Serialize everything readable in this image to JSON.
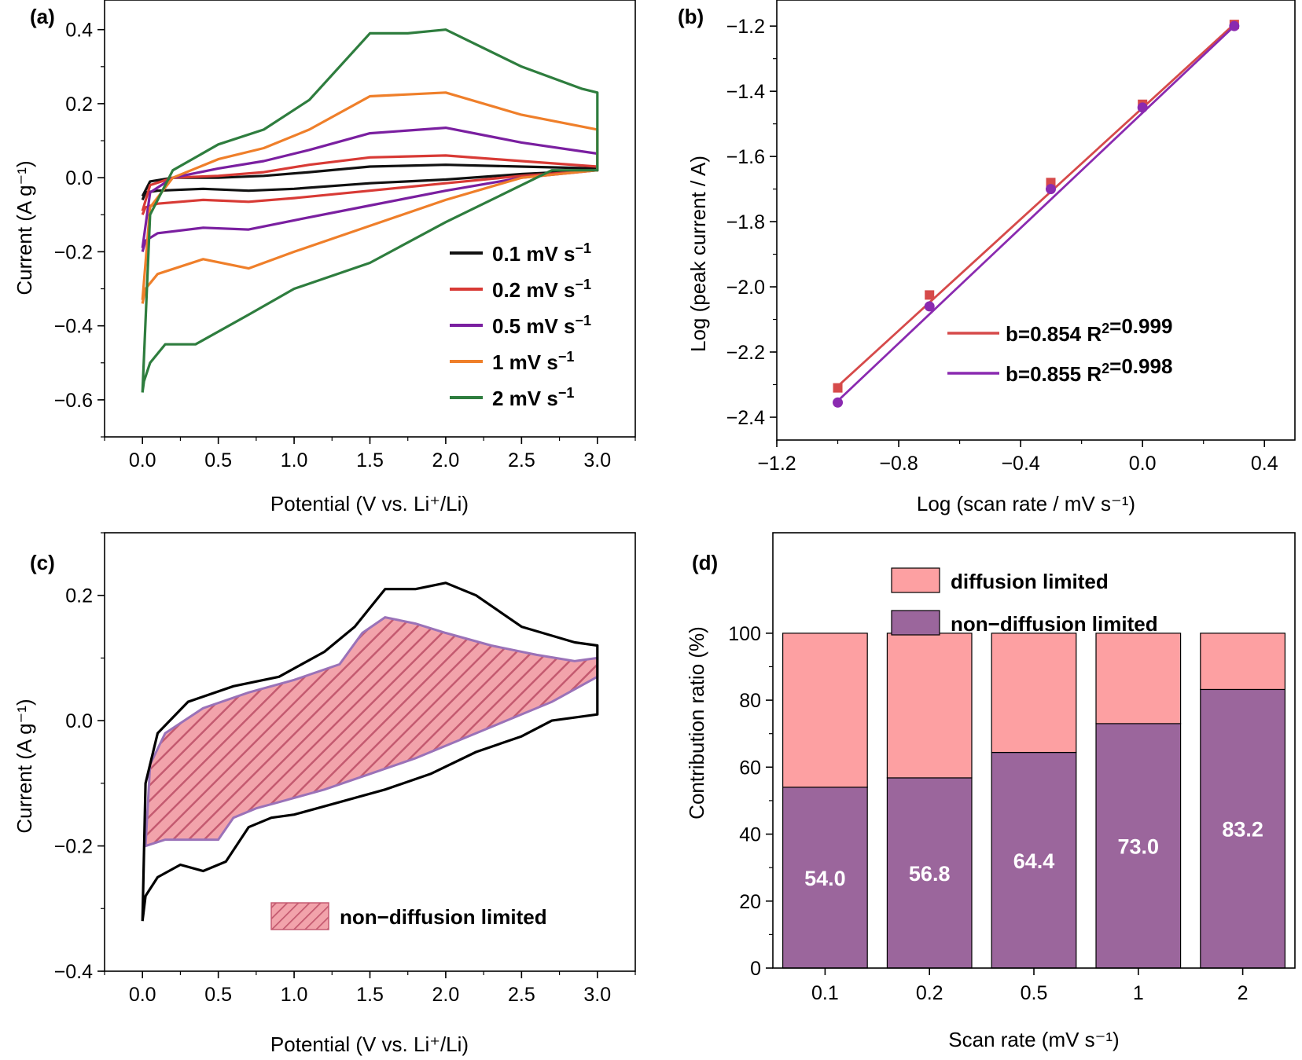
{
  "chart_data": [
    {
      "panel": "(a)",
      "type": "line",
      "xlabel": "Potential (V vs. Li⁺/Li)",
      "ylabel": "Current (A g⁻¹)",
      "xlim": [
        -0.25,
        3.25
      ],
      "ylim": [
        -0.7,
        0.48
      ],
      "xticks": [
        0.0,
        0.5,
        1.0,
        1.5,
        2.0,
        2.5,
        3.0
      ],
      "xtick_labels": [
        "0.0",
        "0.5",
        "1.0",
        "1.5",
        "2.0",
        "2.5",
        "3.0"
      ],
      "yticks": [
        -0.6,
        -0.4,
        -0.2,
        0.0,
        0.2,
        0.4
      ],
      "ytick_labels": [
        "−0.6",
        "−0.4",
        "−0.2",
        "0.0",
        "0.2",
        "0.4"
      ],
      "legend_position": "bottom-right",
      "series": [
        {
          "name": "0.1 mV s⁻¹",
          "color": "#111111",
          "x": [
            0.0,
            0.05,
            0.2,
            0.5,
            0.8,
            1.1,
            1.5,
            2.0,
            2.5,
            3.0,
            3.0,
            2.5,
            2.0,
            1.5,
            1.0,
            0.7,
            0.4,
            0.1,
            0.02,
            0.0
          ],
          "y": [
            -0.05,
            -0.01,
            0.0,
            0.0,
            0.005,
            0.015,
            0.03,
            0.035,
            0.03,
            0.025,
            0.02,
            0.01,
            -0.005,
            -0.015,
            -0.03,
            -0.035,
            -0.03,
            -0.035,
            -0.04,
            -0.06
          ]
        },
        {
          "name": "0.2 mV s⁻¹",
          "color": "#d83a35",
          "x": [
            0.0,
            0.05,
            0.2,
            0.5,
            0.8,
            1.1,
            1.5,
            2.0,
            2.5,
            3.0,
            3.0,
            2.5,
            2.0,
            1.5,
            1.0,
            0.7,
            0.4,
            0.1,
            0.02,
            0.0
          ],
          "y": [
            -0.09,
            -0.02,
            0.0,
            0.005,
            0.015,
            0.035,
            0.055,
            0.06,
            0.045,
            0.03,
            0.02,
            0.005,
            -0.015,
            -0.035,
            -0.055,
            -0.065,
            -0.06,
            -0.07,
            -0.08,
            -0.1
          ]
        },
        {
          "name": "0.5 mV s⁻¹",
          "color": "#7a1fa0",
          "x": [
            0.0,
            0.05,
            0.2,
            0.5,
            0.8,
            1.1,
            1.5,
            2.0,
            2.5,
            3.0,
            3.0,
            2.5,
            2.0,
            1.5,
            1.0,
            0.7,
            0.4,
            0.1,
            0.02,
            0.0
          ],
          "y": [
            -0.19,
            -0.04,
            0.0,
            0.025,
            0.045,
            0.075,
            0.12,
            0.135,
            0.095,
            0.065,
            0.02,
            0.0,
            -0.035,
            -0.075,
            -0.115,
            -0.14,
            -0.135,
            -0.15,
            -0.17,
            -0.2
          ]
        },
        {
          "name": "1 mV s⁻¹",
          "color": "#ef7f2a",
          "x": [
            0.0,
            0.05,
            0.2,
            0.5,
            0.8,
            1.1,
            1.5,
            2.0,
            2.5,
            3.0,
            3.0,
            2.5,
            2.0,
            1.5,
            1.0,
            0.7,
            0.4,
            0.1,
            0.02,
            0.0
          ],
          "y": [
            -0.33,
            -0.08,
            0.0,
            0.05,
            0.08,
            0.13,
            0.22,
            0.23,
            0.17,
            0.13,
            0.02,
            0.0,
            -0.06,
            -0.13,
            -0.2,
            -0.245,
            -0.22,
            -0.26,
            -0.3,
            -0.34
          ]
        },
        {
          "name": "2 mV s⁻¹",
          "color": "#2e7d3e",
          "x": [
            0.0,
            0.05,
            0.2,
            0.5,
            0.8,
            1.1,
            1.5,
            1.75,
            2.0,
            2.5,
            2.9,
            3.0,
            3.0,
            2.7,
            2.5,
            2.0,
            1.5,
            1.0,
            0.7,
            0.35,
            0.15,
            0.05,
            0.01,
            0.0
          ],
          "y": [
            -0.58,
            -0.1,
            0.02,
            0.09,
            0.13,
            0.21,
            0.39,
            0.39,
            0.4,
            0.3,
            0.24,
            0.23,
            0.02,
            0.02,
            -0.02,
            -0.12,
            -0.23,
            -0.3,
            -0.37,
            -0.45,
            -0.45,
            -0.5,
            -0.55,
            -0.58
          ]
        }
      ]
    },
    {
      "panel": "(b)",
      "type": "scatter",
      "xlabel": "Log (scan rate / mV s⁻¹)",
      "ylabel": "Log (peak current / A)",
      "xlim": [
        -1.2,
        0.5
      ],
      "ylim": [
        -2.47,
        -1.12
      ],
      "xticks": [
        -1.2,
        -0.8,
        -0.4,
        0.0,
        0.4
      ],
      "xtick_labels": [
        "−1.2",
        "−0.8",
        "−0.4",
        "0.0",
        "0.4"
      ],
      "yticks": [
        -2.4,
        -2.2,
        -2.0,
        -1.8,
        -1.6,
        -1.4,
        -1.2
      ],
      "ytick_labels": [
        "−2.4",
        "−2.2",
        "−2.0",
        "−1.8",
        "−1.6",
        "−1.4",
        "−1.2"
      ],
      "legend_position": "bottom-right",
      "series": [
        {
          "name": "b=0.854 R²=0.999",
          "color": "#d64a4a",
          "marker": "square",
          "x": [
            -1.0,
            -0.699,
            -0.301,
            0.0,
            0.301
          ],
          "y": [
            -2.31,
            -2.025,
            -1.68,
            -1.44,
            -1.195
          ],
          "fit": {
            "slope": 0.854,
            "x": [
              -1.0,
              0.301
            ],
            "y": [
              -2.305,
              -1.194
            ]
          }
        },
        {
          "name": "b=0.855 R²=0.998",
          "color": "#8a2ab0",
          "marker": "circle",
          "x": [
            -1.0,
            -0.699,
            -0.301,
            0.0,
            0.301
          ],
          "y": [
            -2.355,
            -2.06,
            -1.7,
            -1.45,
            -1.2
          ],
          "fit": {
            "slope": 0.855,
            "x": [
              -1.0,
              0.301
            ],
            "y": [
              -2.35,
              -1.2
            ]
          }
        }
      ]
    },
    {
      "panel": "(c)",
      "type": "area",
      "xlabel": "Potential (V vs. Li⁺/Li)",
      "ylabel": "Current (A g⁻¹)",
      "xlim": [
        -0.25,
        3.25
      ],
      "ylim": [
        -0.4,
        0.3
      ],
      "xticks": [
        0.0,
        0.5,
        1.0,
        1.5,
        2.0,
        2.5,
        3.0
      ],
      "xtick_labels": [
        "0.0",
        "0.5",
        "1.0",
        "1.5",
        "2.0",
        "2.5",
        "3.0"
      ],
      "yticks": [
        -0.4,
        -0.2,
        0.0,
        0.2
      ],
      "ytick_labels": [
        "−0.4",
        "−0.2",
        "0.0",
        "0.2"
      ],
      "legend_position": "bottom-right",
      "legend": "non−diffusion limited",
      "fill_color": "#f0a0a8",
      "hatch_color": "#c45a70",
      "outline_color": "#9a72b8",
      "total_curve": {
        "color": "#000000",
        "x": [
          0.0,
          0.02,
          0.1,
          0.3,
          0.6,
          0.9,
          1.2,
          1.4,
          1.6,
          1.8,
          2.0,
          2.2,
          2.5,
          2.85,
          3.0,
          3.0,
          2.7,
          2.5,
          2.2,
          1.9,
          1.6,
          1.3,
          1.0,
          0.85,
          0.7,
          0.55,
          0.4,
          0.25,
          0.1,
          0.02,
          0.0
        ],
        "y": [
          -0.32,
          -0.1,
          -0.02,
          0.03,
          0.055,
          0.07,
          0.11,
          0.15,
          0.21,
          0.21,
          0.22,
          0.2,
          0.15,
          0.125,
          0.12,
          0.01,
          0.0,
          -0.025,
          -0.05,
          -0.085,
          -0.11,
          -0.13,
          -0.15,
          -0.155,
          -0.17,
          -0.225,
          -0.24,
          -0.23,
          -0.25,
          -0.28,
          -0.32
        ]
      },
      "region": {
        "x": [
          0.02,
          0.05,
          0.15,
          0.4,
          0.7,
          1.0,
          1.3,
          1.45,
          1.6,
          1.8,
          2.0,
          2.3,
          2.6,
          2.85,
          3.0,
          3.0,
          2.7,
          2.4,
          2.1,
          1.8,
          1.5,
          1.2,
          0.9,
          0.75,
          0.6,
          0.5,
          0.35,
          0.15,
          0.02
        ],
        "y": [
          -0.2,
          -0.07,
          -0.02,
          0.02,
          0.045,
          0.065,
          0.09,
          0.14,
          0.165,
          0.155,
          0.14,
          0.12,
          0.105,
          0.095,
          0.1,
          0.07,
          0.03,
          0.0,
          -0.03,
          -0.06,
          -0.085,
          -0.11,
          -0.13,
          -0.14,
          -0.155,
          -0.19,
          -0.19,
          -0.19,
          -0.2
        ]
      }
    },
    {
      "panel": "(d)",
      "type": "bar",
      "stacked": true,
      "xlabel": "Scan rate (mV s⁻¹)",
      "ylabel": "Contribution ratio (%)",
      "ylim": [
        0,
        130
      ],
      "categories": [
        "0.1",
        "0.2",
        "0.5",
        "1",
        "2"
      ],
      "yticks": [
        0,
        20,
        40,
        60,
        80,
        100
      ],
      "ytick_labels": [
        "0",
        "20",
        "40",
        "60",
        "80",
        "100"
      ],
      "legend_position": "top",
      "series": [
        {
          "name": "non−diffusion limited",
          "color": "#9b669c",
          "values": [
            54.0,
            56.8,
            64.4,
            73.0,
            83.2
          ],
          "value_labels": [
            "54.0",
            "56.8",
            "64.4",
            "73.0",
            "83.2"
          ]
        },
        {
          "name": "diffusion limited",
          "color": "#fda0a2",
          "values": [
            46.0,
            43.2,
            35.6,
            27.0,
            16.8
          ]
        }
      ]
    }
  ]
}
